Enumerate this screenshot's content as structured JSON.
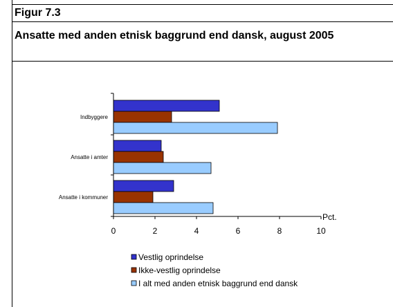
{
  "figure_label": "Figur 7.3",
  "title": "Ansatte med anden etnisk baggrund end dansk, august 2005",
  "colors": {
    "vestlig": "#3333cc",
    "ikke_vestlig": "#993300",
    "ialt": "#99ccff"
  },
  "chart_data": {
    "type": "bar",
    "orientation": "horizontal",
    "categories": [
      "Indbyggere",
      "Ansatte i amter",
      "Ansatte i kommuner"
    ],
    "series": [
      {
        "name": "Vestlig oprindelse",
        "values": [
          5.1,
          2.3,
          2.9
        ]
      },
      {
        "name": "Ikke-vestlig oprindelse",
        "values": [
          2.8,
          2.4,
          1.9
        ]
      },
      {
        "name": "I alt med anden etnisk baggrund end dansk",
        "values": [
          7.9,
          4.7,
          4.8
        ]
      }
    ],
    "xlabel": "Pct.",
    "xticks": [
      "0",
      "2",
      "4",
      "6",
      "8",
      "10"
    ],
    "xlim": [
      0,
      10
    ],
    "grid": false,
    "legend": "bottom"
  }
}
